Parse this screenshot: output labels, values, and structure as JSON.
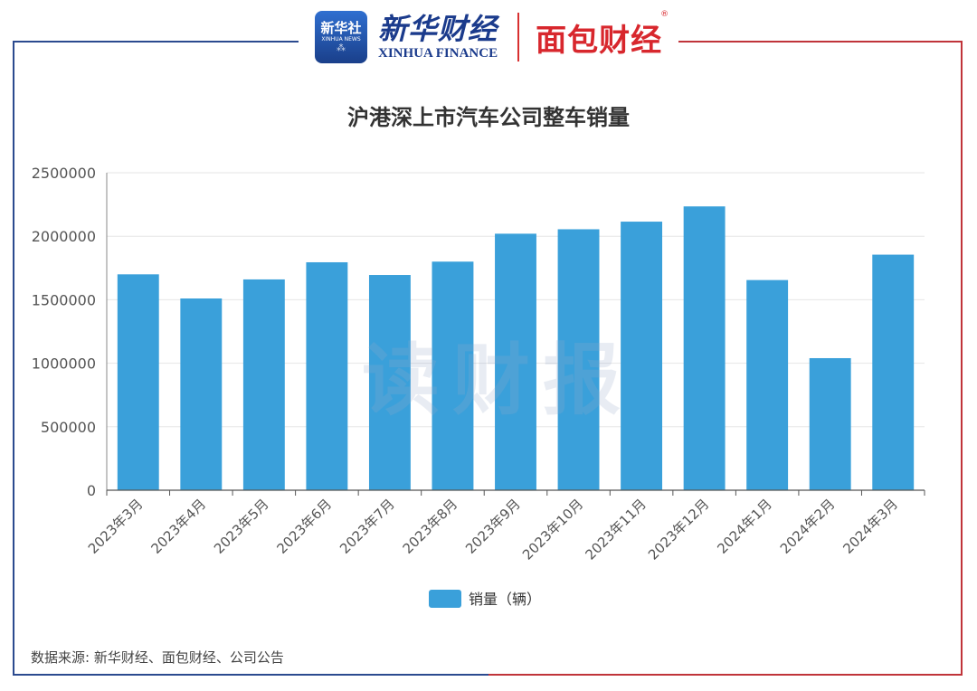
{
  "header": {
    "xinhua_badge_main": "新华社",
    "xinhua_badge_sub": "XINHUA NEWS",
    "xinhua_cn": "新华财经",
    "xinhua_en": "XINHUA FINANCE",
    "mianbao_logo": "面包财经",
    "mianbao_reg": "®"
  },
  "watermark": "读财报",
  "source": "数据来源: 新华财经、面包财经、公司公告",
  "colors": {
    "bar": "#3aa0da",
    "left_line": "#2b4a8f",
    "right_line": "#c0343a",
    "grid": "#e6e6e6",
    "axis": "#555555"
  },
  "chart_data": {
    "type": "bar",
    "title": "沪港深上市汽车公司整车销量",
    "categories": [
      "2023年3月",
      "2023年4月",
      "2023年5月",
      "2023年6月",
      "2023年7月",
      "2023年8月",
      "2023年9月",
      "2023年10月",
      "2023年11月",
      "2023年12月",
      "2024年1月",
      "2024年2月",
      "2024年3月"
    ],
    "series": [
      {
        "name": "销量（辆）",
        "values": [
          1700000,
          1510000,
          1660000,
          1795000,
          1695000,
          1800000,
          2020000,
          2055000,
          2115000,
          2235000,
          1655000,
          1040000,
          1855000
        ]
      }
    ],
    "ylim": [
      0,
      2500000
    ],
    "yticks": [
      0,
      500000,
      1000000,
      1500000,
      2000000,
      2500000
    ],
    "grid": true,
    "legend": "bottom-center"
  }
}
